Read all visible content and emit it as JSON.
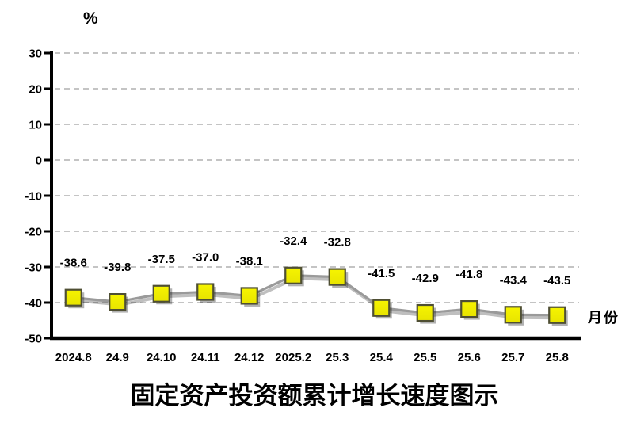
{
  "chart_data": {
    "type": "line",
    "title": "固定资产投资额累计增长速度图示",
    "ylabel": "%",
    "xlabel": "月份",
    "categories": [
      "2024.8",
      "24.9",
      "24.10",
      "24.11",
      "24.12",
      "2025.2",
      "25.3",
      "25.4",
      "25.5",
      "25.6",
      "25.7",
      "25.8"
    ],
    "values": [
      -38.6,
      -39.8,
      -37.5,
      -37.0,
      -38.1,
      -32.4,
      -32.8,
      -41.5,
      -42.9,
      -41.8,
      -43.4,
      -43.5
    ],
    "point_labels": [
      "-38.6",
      "-39.8",
      "-37.5",
      "-37.0",
      "-38.1",
      "-32.4",
      "-32.8",
      "-41.5",
      "-42.9",
      "-41.8",
      "-43.4",
      "-43.5"
    ],
    "ylim": [
      -50,
      30
    ],
    "ytick_step": 10,
    "grid": "horizontal-dashed",
    "legend": "none",
    "marker_shape": "square",
    "colors": {
      "marker_fill": "#e8e400",
      "marker_fill_light": "#f6f400",
      "marker_border": "#4f4f33",
      "line": "#9a9a9a",
      "gridline": "#b0b0b0",
      "axis": "#000000",
      "text": "#000000",
      "background": "#ffffff"
    }
  }
}
